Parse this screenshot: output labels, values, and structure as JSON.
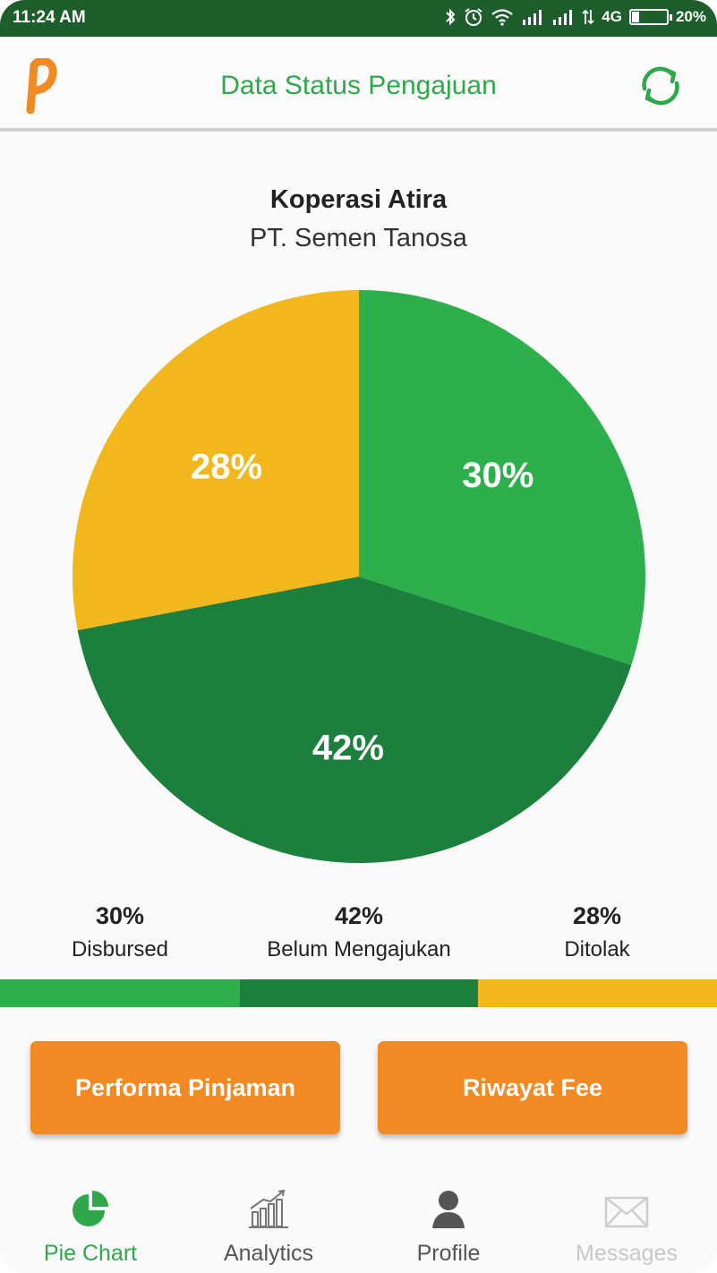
{
  "status_bar": {
    "time": "11:24 AM",
    "network": "4G",
    "battery": "20%",
    "battery_level": 0.2
  },
  "header": {
    "title": "Data Status Pengajuan",
    "logo_icon": "app-logo-icon",
    "refresh_icon": "refresh-icon"
  },
  "org": {
    "name": "Koperasi Atira",
    "company": "PT. Semen Tanosa"
  },
  "chart_data": {
    "type": "pie",
    "slices": [
      {
        "label": "Disbursed",
        "value": 30,
        "display": "30%",
        "color": "#2db04b"
      },
      {
        "label": "Belum Mengajukan",
        "value": 42,
        "display": "42%",
        "color": "#1d7f3d"
      },
      {
        "label": "Ditolak",
        "value": 28,
        "display": "28%",
        "color": "#f2b71c"
      }
    ]
  },
  "legend": [
    {
      "pct": "30%",
      "label": "Disbursed"
    },
    {
      "pct": "42%",
      "label": "Belum Mengajukan"
    },
    {
      "pct": "28%",
      "label": "Ditolak"
    }
  ],
  "buttons": {
    "performa": "Performa Pinjaman",
    "riwayat": "Riwayat Fee"
  },
  "nav": [
    {
      "label": "Pie Chart",
      "icon": "pie-chart-icon",
      "active": true,
      "color": "#2ea84a"
    },
    {
      "label": "Analytics",
      "icon": "analytics-icon",
      "active": false,
      "color": "#555555"
    },
    {
      "label": "Profile",
      "icon": "profile-icon",
      "active": false,
      "color": "#555555"
    },
    {
      "label": "Messages",
      "icon": "messages-icon",
      "active": false,
      "color": "#c8c8c8"
    }
  ]
}
